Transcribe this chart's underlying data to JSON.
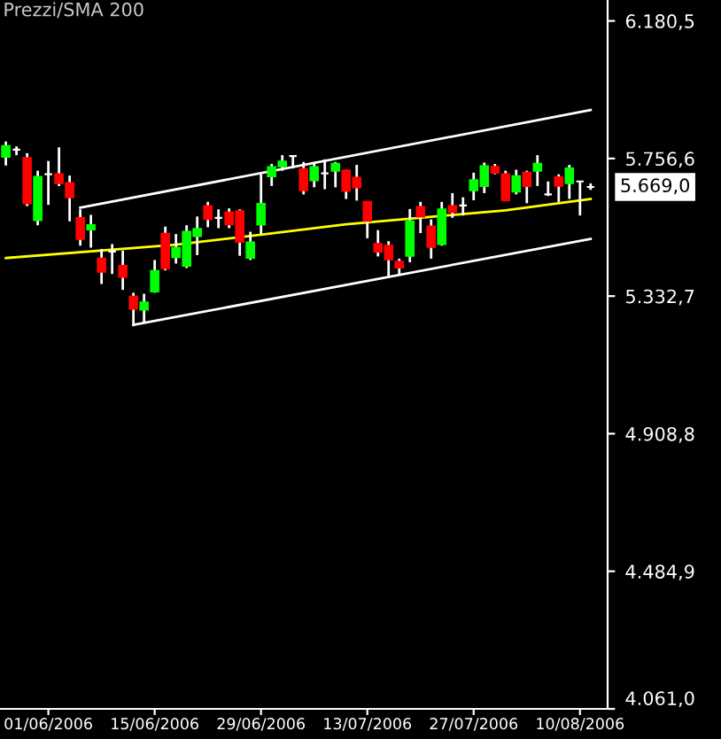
{
  "chart_data": {
    "type": "candlestick",
    "title": "Prezzi/SMA 200",
    "categories": [
      null,
      null,
      null,
      null,
      "01/06/2006",
      null,
      null,
      null,
      null,
      null,
      null,
      null,
      null,
      null,
      "15/06/2006",
      null,
      null,
      null,
      null,
      null,
      null,
      null,
      null,
      null,
      "29/06/2006",
      null,
      null,
      null,
      null,
      null,
      null,
      null,
      null,
      null,
      "13/07/2006",
      null,
      null,
      null,
      null,
      null,
      null,
      null,
      null,
      null,
      "27/07/2006",
      null,
      null,
      null,
      null,
      null,
      null,
      null,
      null,
      null,
      "10/08/2006",
      null
    ],
    "ohlc": [
      [
        5762,
        5809,
        5735,
        5795
      ],
      [
        5784,
        5794,
        5767,
        5784
      ],
      [
        5758,
        5773,
        5610,
        5619
      ],
      [
        5567,
        5719,
        5551,
        5700
      ],
      [
        5708,
        5749,
        5614,
        5708
      ],
      [
        5708,
        5791,
        5672,
        5681
      ],
      [
        5681,
        5704,
        5563,
        5637
      ],
      [
        5573,
        5600,
        5488,
        5509
      ],
      [
        5538,
        5583,
        5482,
        5551
      ],
      [
        5448,
        5478,
        5370,
        5408
      ],
      [
        5470,
        5493,
        5401,
        5470
      ],
      [
        5426,
        5473,
        5352,
        5392
      ],
      [
        5331,
        5343,
        5240,
        5294
      ],
      [
        5291,
        5340,
        5249,
        5313
      ],
      [
        5347,
        5444,
        5343,
        5410
      ],
      [
        5525,
        5547,
        5412,
        5419
      ],
      [
        5453,
        5524,
        5433,
        5482
      ],
      [
        5426,
        5551,
        5419,
        5531
      ],
      [
        5518,
        5578,
        5459,
        5540
      ],
      [
        5610,
        5623,
        5545,
        5570
      ],
      [
        5574,
        5600,
        5542,
        5574
      ],
      [
        5590,
        5603,
        5542,
        5554
      ],
      [
        5594,
        5600,
        5457,
        5500
      ],
      [
        5451,
        5531,
        5444,
        5498
      ],
      [
        5553,
        5708,
        5524,
        5617
      ],
      [
        5702,
        5740,
        5672,
        5730
      ],
      [
        5733,
        5767,
        5719,
        5747
      ],
      [
        5764,
        5767,
        5726,
        5764
      ],
      [
        5724,
        5746,
        5646,
        5659
      ],
      [
        5690,
        5746,
        5668,
        5730
      ],
      [
        5711,
        5754,
        5662,
        5711
      ],
      [
        5719,
        5746,
        5668,
        5740
      ],
      [
        5719,
        5722,
        5632,
        5657
      ],
      [
        5697,
        5737,
        5627,
        5668
      ],
      [
        5623,
        5623,
        5511,
        5565
      ],
      [
        5493,
        5536,
        5455,
        5470
      ],
      [
        5488,
        5502,
        5394,
        5446
      ],
      [
        5439,
        5448,
        5397,
        5421
      ],
      [
        5457,
        5601,
        5437,
        5563
      ],
      [
        5607,
        5623,
        5527,
        5578
      ],
      [
        5547,
        5569,
        5448,
        5484
      ],
      [
        5493,
        5623,
        5488,
        5600
      ],
      [
        5610,
        5650,
        5574,
        5592
      ],
      [
        5612,
        5637,
        5581,
        5612
      ],
      [
        5659,
        5713,
        5628,
        5690
      ],
      [
        5672,
        5744,
        5650,
        5733
      ],
      [
        5731,
        5740,
        5708,
        5713
      ],
      [
        5708,
        5719,
        5625,
        5628
      ],
      [
        5655,
        5722,
        5646,
        5702
      ],
      [
        5713,
        5719,
        5619,
        5672
      ],
      [
        5719,
        5767,
        5672,
        5740
      ],
      [
        5646,
        5686,
        5641,
        5646
      ],
      [
        5699,
        5708,
        5623,
        5673
      ],
      [
        5681,
        5737,
        5632,
        5726
      ],
      [
        5686,
        5686,
        5581,
        5686
      ],
      [
        5669,
        5680,
        5660,
        5669
      ]
    ],
    "colors": [
      "#00ff00",
      "#ffffff",
      "#ff0000",
      "#00ff00",
      "#ffffff",
      "#ff0000",
      "#ff0000",
      "#ff0000",
      "#00ff00",
      "#ff0000",
      "#ffffff",
      "#ff0000",
      "#ff0000",
      "#00ff00",
      "#00ff00",
      "#ff0000",
      "#00ff00",
      "#00ff00",
      "#00ff00",
      "#ff0000",
      "#ffffff",
      "#ff0000",
      "#ff0000",
      "#00ff00",
      "#00ff00",
      "#00ff00",
      "#00ff00",
      "#ffffff",
      "#ff0000",
      "#00ff00",
      "#ffffff",
      "#00ff00",
      "#ff0000",
      "#ff0000",
      "#ff0000",
      "#ff0000",
      "#ff0000",
      "#ff0000",
      "#00ff00",
      "#ff0000",
      "#ff0000",
      "#00ff00",
      "#ff0000",
      "#ffffff",
      "#00ff00",
      "#00ff00",
      "#ff0000",
      "#ff0000",
      "#00ff00",
      "#ff0000",
      "#00ff00",
      "#ffffff",
      "#ff0000",
      "#00ff00",
      "#ffffff",
      "#ffffff"
    ],
    "series": [
      {
        "type": "line",
        "color": "#ffff00",
        "values": [
          5450,
          null,
          null,
          null,
          null,
          null,
          null,
          null,
          null,
          null,
          null,
          null,
          null,
          null,
          null,
          null,
          5491,
          null,
          null,
          null,
          null,
          null,
          null,
          null,
          5522,
          null,
          null,
          null,
          null,
          null,
          null,
          null,
          5554,
          null,
          null,
          null,
          null,
          null,
          null,
          null,
          null,
          null,
          null,
          null,
          null,
          null,
          null,
          5597,
          null,
          null,
          null,
          null,
          null,
          null,
          null,
          5632
        ]
      },
      {
        "type": "line",
        "color": "#ffffff",
        "values": [
          null,
          null,
          null,
          null,
          null,
          null,
          null,
          5605,
          null,
          null,
          null,
          null,
          null,
          null,
          null,
          null,
          null,
          null,
          null,
          null,
          null,
          null,
          null,
          null,
          null,
          null,
          null,
          null,
          null,
          null,
          null,
          null,
          null,
          null,
          null,
          null,
          null,
          null,
          null,
          null,
          null,
          null,
          null,
          null,
          null,
          null,
          null,
          null,
          null,
          null,
          null,
          null,
          null,
          null,
          null,
          5906
        ]
      },
      {
        "type": "line",
        "color": "#ffffff",
        "values": [
          null,
          null,
          null,
          null,
          null,
          null,
          null,
          null,
          null,
          null,
          null,
          null,
          5244,
          null,
          null,
          null,
          null,
          null,
          null,
          null,
          null,
          null,
          null,
          null,
          null,
          null,
          null,
          null,
          null,
          null,
          null,
          null,
          null,
          null,
          null,
          null,
          null,
          null,
          null,
          null,
          null,
          null,
          null,
          null,
          null,
          null,
          null,
          null,
          null,
          null,
          null,
          null,
          null,
          null,
          null,
          5509
        ]
      }
    ],
    "ylim": [
      4061,
      6245
    ],
    "yticks": [
      {
        "value": 6180.5,
        "label": "6.180,5"
      },
      {
        "value": 5756.6,
        "label": "5.756,6"
      },
      {
        "value": 5332.7,
        "label": "5.332,7"
      },
      {
        "value": 4908.8,
        "label": "4.908,8"
      },
      {
        "value": 4484.9,
        "label": "4.484,9"
      },
      {
        "value": 4061.0,
        "label": "4.061,0"
      }
    ],
    "annotations": [
      "5.669,0"
    ],
    "grid": false,
    "legend": false
  }
}
